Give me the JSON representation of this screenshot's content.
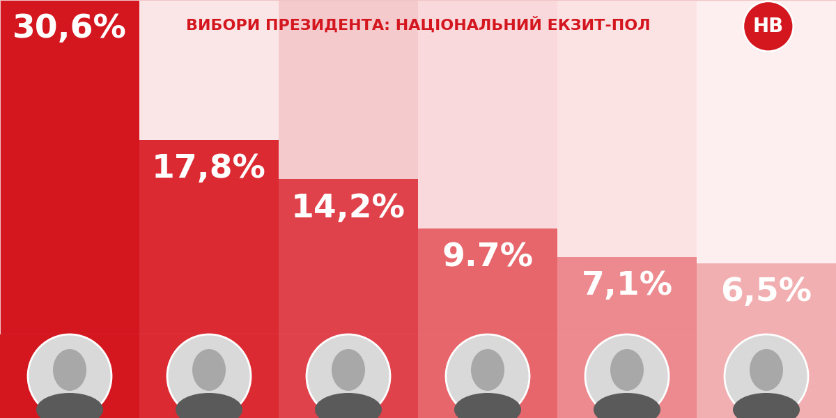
{
  "chart_data": {
    "type": "bar",
    "title": "ВИБОРИ ПРЕЗИДЕНТА: НАЦІОНАЛЬНИЙ ЕКЗИТ-ПОЛ",
    "annotations": [
      "НВ"
    ],
    "categories": [
      null,
      null,
      null,
      null,
      null,
      null
    ],
    "values": [
      30.6,
      17.8,
      14.2,
      9.7,
      7.1,
      6.5
    ],
    "value_labels": [
      "30,6%",
      "17,8%",
      "14,2%",
      "9.7%",
      "7,1%",
      "6,5%"
    ],
    "colors": [
      "#d4161f",
      "#dc2a33",
      "#e0424b",
      "#e6666c",
      "#ec8a8f",
      "#f2afb2"
    ],
    "ylim": [
      0,
      30.6
    ],
    "data_labels": true,
    "tick_labels": false,
    "grid": false
  }
}
